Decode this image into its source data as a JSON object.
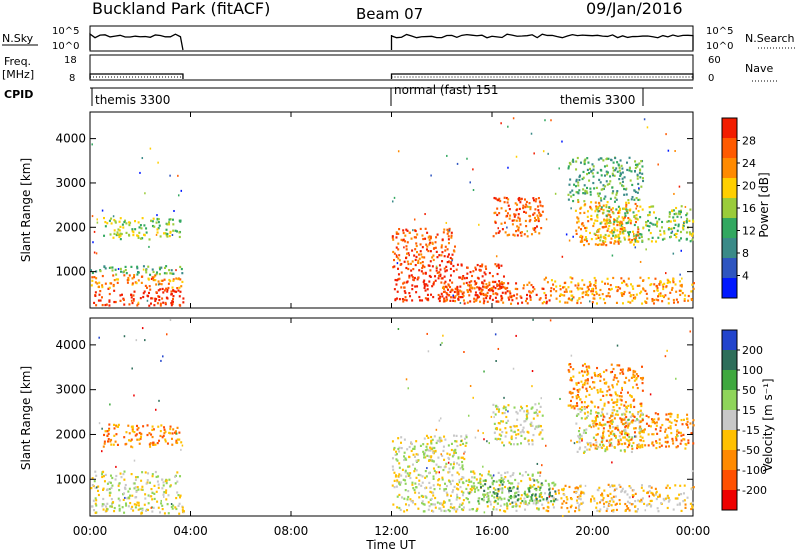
{
  "header": {
    "title": "Buckland Park (fitACF)",
    "beam": "Beam 07",
    "date": "09/Jan/2016"
  },
  "strip": {
    "nsky_label": "N.Sky",
    "nsky_ticks": [
      "10^5",
      "10^0"
    ],
    "nsearch_label": "N.Search",
    "nsearch_ticks": [
      "10^5",
      "10^0"
    ],
    "freq_label": "Freq.",
    "freq_unit": "[MHz]",
    "freq_ticks": [
      "18",
      "8"
    ],
    "nave_label": "Nave",
    "nave_ticks": [
      "60",
      "0"
    ],
    "cpid_label": "CPID",
    "cpid_entries": [
      {
        "name": "themis 3300",
        "start_hour": 0
      },
      {
        "name": "normal (fast) 151",
        "start_hour": 12
      },
      {
        "name": "themis 3300",
        "start_hour": 19
      }
    ]
  },
  "x_axis": {
    "label": "Time UT",
    "ticks": [
      "00:00",
      "04:00",
      "08:00",
      "12:00",
      "16:00",
      "20:00",
      "00:00"
    ],
    "range_hours": [
      0,
      24
    ]
  },
  "colors": {
    "power": [
      "#0018ff",
      "#2e55c0",
      "#3a8a88",
      "#32a860",
      "#9acc3a",
      "#ffcf00",
      "#ff8a00",
      "#ff5a00",
      "#f21d00"
    ],
    "velocity": [
      "#2244cc",
      "#2e6e5a",
      "#3fa83f",
      "#8fd45a",
      "#c8c8c8",
      "#ffc000",
      "#ff8a00",
      "#ff5000",
      "#ee0000"
    ]
  },
  "chart_data": [
    {
      "type": "heatmap",
      "panel": "power",
      "ylabel": "Slant Range [km]",
      "yticks": [
        "1000",
        "2000",
        "3000",
        "4000"
      ],
      "ylim": [
        180,
        4600
      ],
      "xlim_hours": [
        0,
        24
      ],
      "colorbar_label": "Power [dB]",
      "colorbar_ticks": [
        "4",
        "8",
        "12",
        "16",
        "20",
        "24",
        "28"
      ],
      "colorbar_range": [
        0,
        32
      ],
      "data_gap_hours": [
        3.7,
        12.0
      ],
      "regions": [
        {
          "t": [
            0.0,
            3.7
          ],
          "r": [
            250,
            650
          ],
          "level": 8
        },
        {
          "t": [
            0.0,
            3.7
          ],
          "r": [
            650,
            950
          ],
          "level": 6
        },
        {
          "t": [
            0.0,
            3.7
          ],
          "r": [
            950,
            1150
          ],
          "level": 3
        },
        {
          "t": [
            0.5,
            3.6
          ],
          "r": [
            1750,
            2250
          ],
          "level": 4
        },
        {
          "t": [
            12.0,
            16.5
          ],
          "r": [
            350,
            1200
          ],
          "level": 8
        },
        {
          "t": [
            12.0,
            14.5
          ],
          "r": [
            1200,
            2000
          ],
          "level": 7
        },
        {
          "t": [
            14.0,
            18.3
          ],
          "r": [
            300,
            800
          ],
          "level": 7
        },
        {
          "t": [
            16.0,
            18.0
          ],
          "r": [
            1800,
            2700
          ],
          "level": 7
        },
        {
          "t": [
            18.0,
            24.0
          ],
          "r": [
            300,
            900
          ],
          "level": 6
        },
        {
          "t": [
            19.3,
            21.8
          ],
          "r": [
            1600,
            2600
          ],
          "level": 6
        },
        {
          "t": [
            20.0,
            24.0
          ],
          "r": [
            1700,
            2500
          ],
          "level": 4
        },
        {
          "t": [
            19.0,
            22.0
          ],
          "r": [
            2600,
            3600
          ],
          "level": 3
        }
      ]
    },
    {
      "type": "heatmap",
      "panel": "velocity",
      "ylabel": "Slant Range [km]",
      "yticks": [
        "1000",
        "2000",
        "3000",
        "4000"
      ],
      "ylim": [
        180,
        4600
      ],
      "xlim_hours": [
        0,
        24
      ],
      "colorbar_label": "Velocity [m s⁻¹]",
      "colorbar_ticks": [
        "200",
        "100",
        "50",
        "15",
        "-15",
        "-50",
        "-100",
        "-200"
      ],
      "colorbar_range": [
        -250,
        250
      ],
      "data_gap_hours": [
        3.7,
        12.0
      ],
      "regions": [
        {
          "t": [
            0.0,
            3.7
          ],
          "r": [
            250,
            1200
          ],
          "level": 4
        },
        {
          "t": [
            0.5,
            3.6
          ],
          "r": [
            1750,
            2250
          ],
          "level": 6
        },
        {
          "t": [
            12.0,
            18.0
          ],
          "r": [
            300,
            1200
          ],
          "level": 4
        },
        {
          "t": [
            12.0,
            15.0
          ],
          "r": [
            1200,
            2000
          ],
          "level": 4
        },
        {
          "t": [
            15.0,
            18.5
          ],
          "r": [
            500,
            1000
          ],
          "level": 2
        },
        {
          "t": [
            16.0,
            18.0
          ],
          "r": [
            1800,
            2700
          ],
          "level": 4
        },
        {
          "t": [
            18.0,
            24.0
          ],
          "r": [
            300,
            900
          ],
          "level": 5
        },
        {
          "t": [
            19.3,
            22.0
          ],
          "r": [
            1600,
            2600
          ],
          "level": 4
        },
        {
          "t": [
            20.0,
            24.0
          ],
          "r": [
            1700,
            2500
          ],
          "level": 6
        },
        {
          "t": [
            19.0,
            22.0
          ],
          "r": [
            2600,
            3600
          ],
          "level": 6
        }
      ]
    }
  ]
}
